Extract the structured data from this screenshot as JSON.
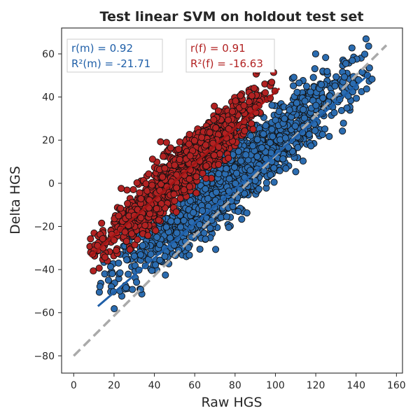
{
  "chart_data": {
    "type": "scatter",
    "title": "Test linear SVM on holdout test set",
    "xlabel": "Raw HGS",
    "ylabel": "Delta HGS",
    "xlim": [
      -6,
      163
    ],
    "ylim": [
      -88,
      72
    ],
    "x_ticks": [
      0,
      20,
      40,
      60,
      80,
      100,
      120,
      140,
      160
    ],
    "y_ticks": [
      -80,
      -60,
      -40,
      -20,
      0,
      20,
      40,
      60
    ],
    "grid": false,
    "series": [
      {
        "key": "male",
        "color": "#2b6cb0",
        "point_cloud": {
          "x_range": [
            12,
            148
          ],
          "slope": 0.76,
          "intercept": -57.6,
          "spread": 8,
          "count": 1500
        },
        "fit_line": {
          "x": [
            12,
            147
          ],
          "y": [
            -57,
            51
          ]
        }
      },
      {
        "key": "female",
        "color": "#b22222",
        "point_cloud": {
          "x_range": [
            8,
            100
          ],
          "slope": 0.86,
          "intercept": -40.5,
          "spread": 6,
          "count": 1300
        },
        "fit_line": {
          "x": [
            8,
            102
          ],
          "y": [
            -34,
            44
          ]
        }
      }
    ],
    "identity_line": {
      "x": [
        0,
        155
      ],
      "y": [
        -80,
        64
      ],
      "color": "#aaaaaa",
      "style": "dashed"
    },
    "annotations": {
      "male": {
        "r_text": "r(m) = 0.92",
        "r2_text": "R²(m) = -21.71",
        "color": "#1f5fa8"
      },
      "female": {
        "r_text": "r(f) = 0.91",
        "r2_text": "R²(f) = -16.63",
        "color": "#b22222"
      }
    }
  }
}
